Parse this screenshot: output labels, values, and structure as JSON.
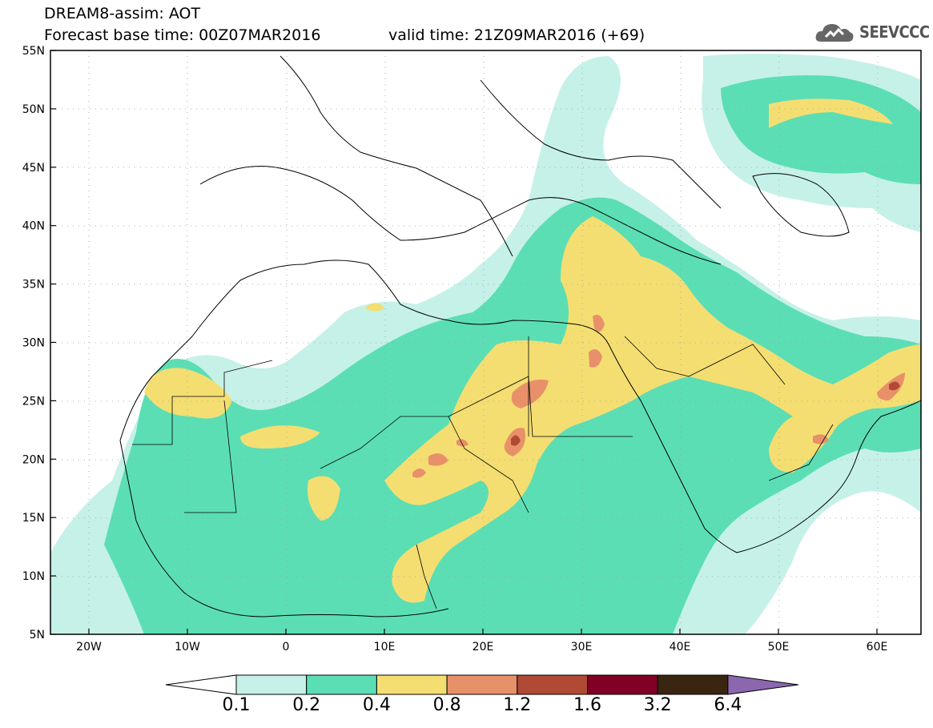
{
  "header": {
    "line1": "DREAM8-assim: AOT",
    "line2_left": "Forecast base time: 00Z07MAR2016",
    "line2_right": "valid time: 21Z09MAR2016 (+69)"
  },
  "logo": {
    "text": "SEEVCCC",
    "icon": "cloud-icon"
  },
  "map": {
    "variable": "AOT",
    "model": "DREAM8-assim",
    "lon_range": [
      -25,
      65
    ],
    "lat_range": [
      5,
      55
    ],
    "lat_labels": [
      "55N",
      "50N",
      "45N",
      "40N",
      "35N",
      "30N",
      "25N",
      "20N",
      "15N",
      "10N",
      "5N"
    ],
    "lon_labels": [
      "20W",
      "10W",
      "0",
      "10E",
      "20E",
      "30E",
      "40E",
      "50E",
      "60E"
    ],
    "grid": "dotted"
  },
  "colorbar": {
    "labels": [
      "0.1",
      "0.2",
      "0.4",
      "0.8",
      "1.2",
      "1.6",
      "3.2",
      "6.4"
    ],
    "colors": [
      "#ffffff",
      "#c6f1e8",
      "#5cdeb5",
      "#f4de72",
      "#e8906a",
      "#b04a35",
      "#800026",
      "#3a2511",
      "#8b67b0"
    ]
  }
}
